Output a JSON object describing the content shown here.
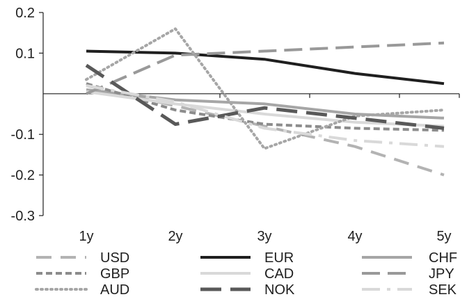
{
  "chart_data": {
    "type": "line",
    "title": "",
    "xlabel": "",
    "ylabel": "",
    "categories": [
      "1y",
      "2y",
      "3y",
      "4y",
      "5y"
    ],
    "ylim": [
      -0.3,
      0.2
    ],
    "yticks": [
      {
        "value": 0.2,
        "label": "0.2"
      },
      {
        "value": 0.1,
        "label": "0.1"
      },
      {
        "value": -0.1,
        "label": "-0.1"
      },
      {
        "value": -0.2,
        "label": "-0.2"
      },
      {
        "value": -0.3,
        "label": "-0.3"
      }
    ],
    "x_axis_at": 0,
    "grid": false,
    "legend_position": "bottom",
    "series": [
      {
        "name": "USD",
        "values": [
          0.02,
          -0.03,
          -0.08,
          -0.13,
          -0.2
        ],
        "color": "#b3b3b3",
        "dash": "22,13",
        "width": 4
      },
      {
        "name": "EUR",
        "values": [
          0.105,
          0.1,
          0.085,
          0.05,
          0.025
        ],
        "color": "#1f1f1f",
        "dash": "",
        "width": 4
      },
      {
        "name": "CHF",
        "values": [
          0.01,
          -0.015,
          -0.025,
          -0.05,
          -0.06
        ],
        "color": "#a6a6a6",
        "dash": "",
        "width": 4
      },
      {
        "name": "GBP",
        "values": [
          0.025,
          -0.04,
          -0.075,
          -0.085,
          -0.09
        ],
        "color": "#8c8c8c",
        "dash": "9,5",
        "width": 4
      },
      {
        "name": "CAD",
        "values": [
          0.005,
          -0.025,
          -0.05,
          -0.07,
          -0.08
        ],
        "color": "#d9d9d9",
        "dash": "",
        "width": 4
      },
      {
        "name": "JPY",
        "values": [
          0.0,
          0.095,
          0.105,
          0.115,
          0.125
        ],
        "color": "#999999",
        "dash": "26,11",
        "width": 4
      },
      {
        "name": "AUD",
        "values": [
          0.035,
          0.16,
          -0.135,
          -0.055,
          -0.04
        ],
        "color": "#a6a6a6",
        "dash": "2,5",
        "width": 4
      },
      {
        "name": "NOK",
        "values": [
          0.07,
          -0.075,
          -0.035,
          -0.06,
          -0.085
        ],
        "color": "#595959",
        "dash": "30,13",
        "width": 5
      },
      {
        "name": "SEK",
        "values": [
          0.02,
          -0.02,
          -0.085,
          -0.115,
          -0.13
        ],
        "color": "#d9d9d9",
        "dash": "26,10,5,10",
        "width": 4
      }
    ]
  }
}
